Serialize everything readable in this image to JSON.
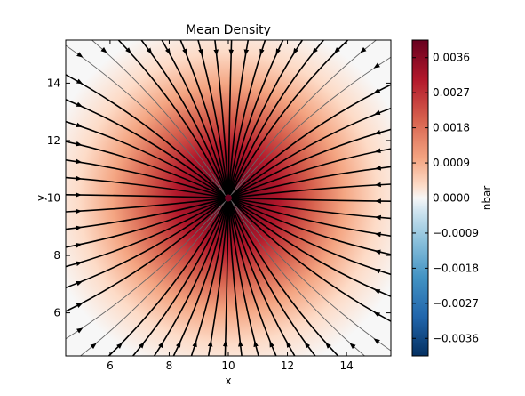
{
  "chart_data": {
    "type": "heatmap",
    "title": "Mean Density",
    "xlabel": "x",
    "ylabel": "y",
    "xlim": [
      4.5,
      15.5
    ],
    "ylim": [
      4.5,
      15.5
    ],
    "x_ticks": [
      6,
      8,
      10,
      12,
      14
    ],
    "y_ticks": [
      6,
      8,
      10,
      12,
      14
    ],
    "center": [
      10,
      10
    ],
    "peak_value": 0.00405,
    "sigma": 2.9,
    "colorbar": {
      "label": "nbar",
      "range": [
        -0.00405,
        0.00405
      ],
      "ticks": [
        -0.0036,
        -0.0027,
        -0.0018,
        -0.0009,
        0.0,
        0.0009,
        0.0018,
        0.0027,
        0.0036
      ],
      "tick_labels": [
        "−0.0036",
        "−0.0027",
        "−0.0018",
        "−0.0009",
        "0.0000",
        "0.0009",
        "0.0018",
        "0.0027",
        "0.0036"
      ],
      "colormap": "RdBu_r"
    },
    "streamlines": "radial flow converging toward the centre",
    "grid": false,
    "colors": {
      "high": "#67001f",
      "mid": "#f7f7f7",
      "low": "#053061",
      "lines": "#000000"
    }
  }
}
